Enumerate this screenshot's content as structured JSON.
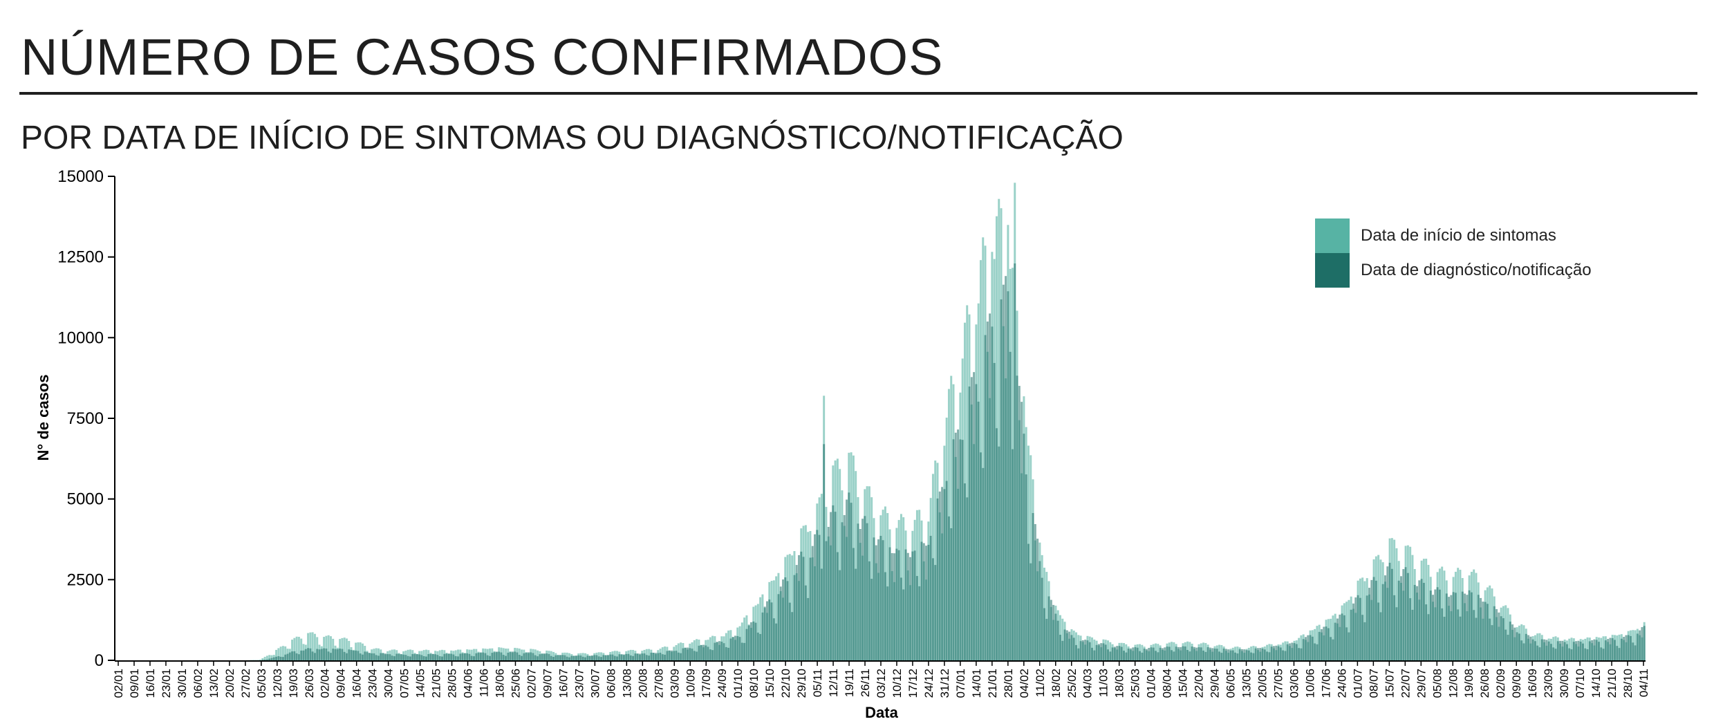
{
  "header": {
    "title": "NÚMERO DE CASOS CONFIRMADOS",
    "subtitle": "POR DATA DE INÍCIO DE SINTOMAS OU DIAGNÓSTICO/NOTIFICAÇÃO"
  },
  "chart_data": {
    "type": "bar",
    "xlabel": "Data",
    "ylabel": "N° de casos",
    "ylim": [
      0,
      15000
    ],
    "yticks": [
      0,
      2500,
      5000,
      7500,
      10000,
      12500,
      15000
    ],
    "grid": false,
    "legend_position": "top-right",
    "x_start": "2020-01-02",
    "x_end": "2021-11-04",
    "x_tick_labels": [
      "02/01",
      "09/01",
      "16/01",
      "23/01",
      "30/01",
      "06/02",
      "13/02",
      "20/02",
      "27/02",
      "05/03",
      "12/03",
      "19/03",
      "26/03",
      "02/04",
      "09/04",
      "16/04",
      "23/04",
      "30/04",
      "07/05",
      "14/05",
      "21/05",
      "28/05",
      "04/06",
      "11/06",
      "18/06",
      "25/06",
      "02/07",
      "09/07",
      "16/07",
      "23/07",
      "30/07",
      "06/08",
      "13/08",
      "20/08",
      "27/08",
      "03/09",
      "10/09",
      "17/09",
      "24/09",
      "01/10",
      "08/10",
      "15/10",
      "22/10",
      "29/10",
      "05/11",
      "12/11",
      "19/11",
      "26/11",
      "03/12",
      "10/12",
      "17/12",
      "24/12",
      "31/12",
      "07/01",
      "14/01",
      "21/01",
      "28/01",
      "04/02",
      "11/02",
      "18/02",
      "25/02",
      "04/03",
      "11/03",
      "18/03",
      "25/03",
      "01/04",
      "08/04",
      "15/04",
      "22/04",
      "29/04",
      "06/05",
      "13/05",
      "20/05",
      "27/05",
      "03/06",
      "10/06",
      "17/06",
      "24/06",
      "01/07",
      "08/07",
      "15/07",
      "22/07",
      "29/07",
      "05/08",
      "12/08",
      "19/08",
      "26/08",
      "02/09",
      "09/09",
      "16/09",
      "23/09",
      "30/09",
      "07/10",
      "14/10",
      "21/10",
      "28/10",
      "04/11"
    ],
    "series": [
      {
        "name": "Data de início de sintomas",
        "color": "#57b3a4",
        "weekly_values": [
          0,
          0,
          0,
          0,
          0,
          0,
          0,
          0,
          0,
          20,
          300,
          600,
          800,
          700,
          650,
          550,
          350,
          300,
          300,
          300,
          300,
          300,
          330,
          350,
          380,
          360,
          330,
          280,
          220,
          200,
          210,
          250,
          280,
          300,
          330,
          450,
          550,
          650,
          750,
          1000,
          1600,
          2300,
          3000,
          3800,
          4500,
          5600,
          6000,
          5000,
          4300,
          4000,
          4000,
          4400,
          7000,
          9000,
          11000,
          13000,
          13500,
          8000,
          3500,
          1600,
          900,
          700,
          600,
          500,
          450,
          450,
          500,
          520,
          500,
          450,
          380,
          380,
          430,
          500,
          600,
          900,
          1200,
          1600,
          2300,
          2900,
          3500,
          3300,
          2900,
          2600,
          2500,
          2600,
          2200,
          1700,
          1100,
          800,
          700,
          650,
          650,
          700,
          750,
          850,
          1100
        ],
        "spikes": [
          {
            "week": 44,
            "value": 8200
          },
          {
            "week": 56,
            "value": 14800
          },
          {
            "week": 55,
            "value": 14300
          }
        ]
      },
      {
        "name": "Data de diagnóstico/notificação",
        "color": "#1e6e66",
        "weekly_values": [
          0,
          0,
          0,
          0,
          0,
          0,
          0,
          0,
          0,
          0,
          100,
          250,
          350,
          350,
          350,
          300,
          220,
          200,
          180,
          180,
          180,
          190,
          200,
          220,
          240,
          240,
          220,
          190,
          150,
          140,
          150,
          170,
          190,
          210,
          230,
          300,
          380,
          450,
          550,
          700,
          1100,
          1700,
          2300,
          3000,
          3600,
          4300,
          4700,
          4100,
          3600,
          3300,
          3300,
          3600,
          5500,
          7000,
          8500,
          10000,
          10800,
          6500,
          2800,
          1300,
          700,
          550,
          470,
          400,
          370,
          370,
          400,
          420,
          400,
          370,
          320,
          320,
          360,
          420,
          500,
          720,
          950,
          1300,
          1800,
          2300,
          2700,
          2600,
          2300,
          2100,
          2000,
          2100,
          1800,
          1400,
          900,
          650,
          570,
          540,
          540,
          580,
          620,
          700,
          950
        ],
        "spikes": [
          {
            "week": 44,
            "value": 6700
          },
          {
            "week": 56,
            "value": 12300
          }
        ]
      }
    ]
  }
}
